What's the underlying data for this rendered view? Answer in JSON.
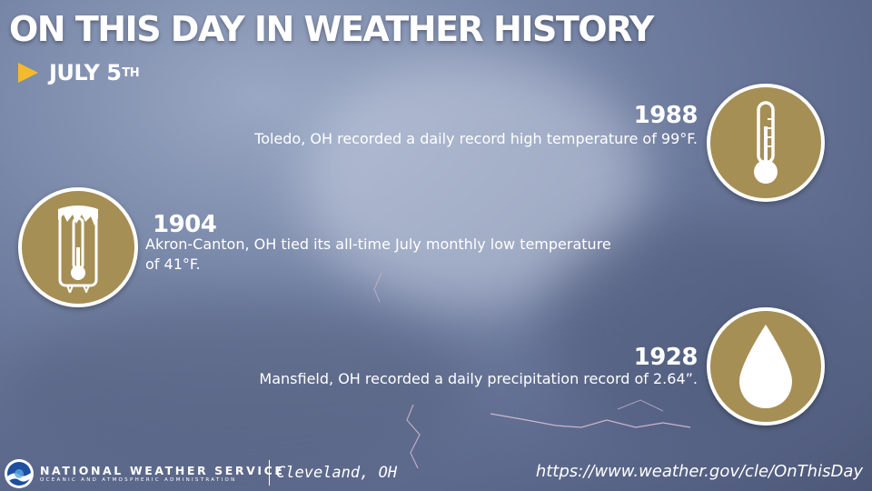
{
  "header": {
    "title": "ON THIS DAY IN WEATHER HISTORY",
    "date_month_day": "JULY 5",
    "date_suffix": "TH"
  },
  "events": [
    {
      "year": "1988",
      "text": "Toledo, OH recorded a daily record high temperature of 99°F.",
      "icon": "thermometer-icon"
    },
    {
      "year": "1904",
      "text_line1": "Akron-Canton, OH tied its all-time July monthly low temperature",
      "text_line2": "of 41°F.",
      "icon": "frozen-thermometer-icon"
    },
    {
      "year": "1928",
      "text": "Mansfield, OH recorded a daily precipitation record of 2.64”.",
      "icon": "raindrop-icon"
    }
  ],
  "footer": {
    "agency": "NATIONAL WEATHER SERVICE",
    "agency_sub": "OCEANIC AND ATMOSPHERIC ADMINISTRATION",
    "office": "Cleveland, OH",
    "url": "https://www.weather.gov/cle/OnThisDay"
  },
  "colors": {
    "icon_circle": "#a68f55",
    "arrow": "#f2bb2c"
  }
}
